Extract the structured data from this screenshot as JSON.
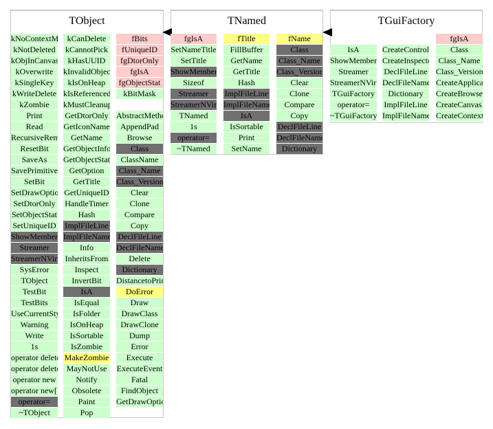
{
  "classes": [
    {
      "name": "TObject",
      "columns": [
        [
          {
            "t": "kNoContextMenu",
            "k": "green"
          },
          {
            "t": "kNotDeleted",
            "k": "green"
          },
          {
            "t": "kObjInCanvas",
            "k": "green"
          },
          {
            "t": "kOverwrite",
            "k": "green"
          },
          {
            "t": "kSingleKey",
            "k": "green"
          },
          {
            "t": "kWriteDelete",
            "k": "green"
          },
          {
            "t": "kZombie",
            "k": "green"
          },
          {
            "t": "Print",
            "k": "green"
          },
          {
            "t": "Read",
            "k": "green"
          },
          {
            "t": "RecursiveRemove",
            "k": "green"
          },
          {
            "t": "ResetBit",
            "k": "green"
          },
          {
            "t": "SaveAs",
            "k": "green"
          },
          {
            "t": "SavePrimitive",
            "k": "green"
          },
          {
            "t": "SetBit",
            "k": "green"
          },
          {
            "t": "SetDrawOption",
            "k": "green"
          },
          {
            "t": "SetDtorOnly",
            "k": "green"
          },
          {
            "t": "SetObjectStat",
            "k": "green"
          },
          {
            "t": "SetUniqueID",
            "k": "green"
          },
          {
            "t": "ShowMembers",
            "k": "gray"
          },
          {
            "t": "Streamer",
            "k": "gray"
          },
          {
            "t": "StreamerNVirtual",
            "k": "gray"
          },
          {
            "t": "SysError",
            "k": "green"
          },
          {
            "t": "TObject",
            "k": "green"
          },
          {
            "t": "TestBit",
            "k": "green"
          },
          {
            "t": "TestBits",
            "k": "green"
          },
          {
            "t": "UseCurrentStyle",
            "k": "green"
          },
          {
            "t": "Warning",
            "k": "green"
          },
          {
            "t": "Write",
            "k": "green"
          },
          {
            "t": "1s",
            "k": "green"
          },
          {
            "t": "operator delete",
            "k": "green"
          },
          {
            "t": "operator delete[]",
            "k": "green"
          },
          {
            "t": "operator new",
            "k": "green"
          },
          {
            "t": "operator new[]",
            "k": "green"
          },
          {
            "t": "operator=",
            "k": "gray"
          },
          {
            "t": "~TObject",
            "k": "green"
          }
        ],
        [
          {
            "t": "kCanDelete",
            "k": "green"
          },
          {
            "t": "kCannotPick",
            "k": "green"
          },
          {
            "t": "kHasUUID",
            "k": "green"
          },
          {
            "t": "kInvalidObject",
            "k": "green"
          },
          {
            "t": "kIsOnHeap",
            "k": "green"
          },
          {
            "t": "kIsReferenced",
            "k": "green"
          },
          {
            "t": "kMustCleanup",
            "k": "green"
          },
          {
            "t": "GetDtorOnly",
            "k": "green"
          },
          {
            "t": "GetIconName",
            "k": "green"
          },
          {
            "t": "GetName",
            "k": "green"
          },
          {
            "t": "GetObjectInfo",
            "k": "green"
          },
          {
            "t": "GetObjectStat",
            "k": "green"
          },
          {
            "t": "GetOption",
            "k": "green"
          },
          {
            "t": "GetTitle",
            "k": "green"
          },
          {
            "t": "GetUniqueID",
            "k": "green"
          },
          {
            "t": "HandleTimer",
            "k": "green"
          },
          {
            "t": "Hash",
            "k": "green"
          },
          {
            "t": "ImplFileLine",
            "k": "gray"
          },
          {
            "t": "ImplFileName",
            "k": "gray"
          },
          {
            "t": "Info",
            "k": "green"
          },
          {
            "t": "InheritsFrom",
            "k": "green"
          },
          {
            "t": "Inspect",
            "k": "green"
          },
          {
            "t": "InvertBit",
            "k": "green"
          },
          {
            "t": "IsA",
            "k": "gray"
          },
          {
            "t": "IsEqual",
            "k": "green"
          },
          {
            "t": "IsFolder",
            "k": "green"
          },
          {
            "t": "IsOnHeap",
            "k": "green"
          },
          {
            "t": "IsSortable",
            "k": "green"
          },
          {
            "t": "IsZombie",
            "k": "green"
          },
          {
            "t": "MakeZombie",
            "k": "yellow"
          },
          {
            "t": "MayNotUse",
            "k": "green"
          },
          {
            "t": "Notify",
            "k": "green"
          },
          {
            "t": "Obsolete",
            "k": "green"
          },
          {
            "t": "Paint",
            "k": "green"
          },
          {
            "t": "Pop",
            "k": "green"
          }
        ],
        [
          {
            "t": "fBits",
            "k": "pink"
          },
          {
            "t": "fUniqueID",
            "k": "pink"
          },
          {
            "t": "fgDtorOnly",
            "k": "pink"
          },
          {
            "t": "fgIsA",
            "k": "pink"
          },
          {
            "t": "fgObjectStat",
            "k": "pink"
          },
          {
            "t": "kBitMask",
            "k": "green"
          },
          {
            "t": "",
            "k": "blank"
          },
          {
            "t": "AbstractMethod",
            "k": "green"
          },
          {
            "t": "AppendPad",
            "k": "green"
          },
          {
            "t": "Browse",
            "k": "green"
          },
          {
            "t": "Class",
            "k": "gray"
          },
          {
            "t": "ClassName",
            "k": "green"
          },
          {
            "t": "Class_Name",
            "k": "gray"
          },
          {
            "t": "Class_Version",
            "k": "gray"
          },
          {
            "t": "Clear",
            "k": "green"
          },
          {
            "t": "Clone",
            "k": "green"
          },
          {
            "t": "Compare",
            "k": "green"
          },
          {
            "t": "Copy",
            "k": "green"
          },
          {
            "t": "DeclFileLine",
            "k": "gray"
          },
          {
            "t": "DeclFileName",
            "k": "gray"
          },
          {
            "t": "Delete",
            "k": "green"
          },
          {
            "t": "Dictionary",
            "k": "gray"
          },
          {
            "t": "DistancetoPrimitive",
            "k": "green"
          },
          {
            "t": "DoError",
            "k": "yellow"
          },
          {
            "t": "Draw",
            "k": "green"
          },
          {
            "t": "DrawClass",
            "k": "green"
          },
          {
            "t": "DrawClone",
            "k": "green"
          },
          {
            "t": "Dump",
            "k": "green"
          },
          {
            "t": "Error",
            "k": "green"
          },
          {
            "t": "Execute",
            "k": "green"
          },
          {
            "t": "ExecuteEvent",
            "k": "green"
          },
          {
            "t": "Fatal",
            "k": "green"
          },
          {
            "t": "FindObject",
            "k": "green"
          },
          {
            "t": "GetDrawOption",
            "k": "green"
          }
        ]
      ]
    },
    {
      "name": "TNamed",
      "columns": [
        [
          {
            "t": "fgIsA",
            "k": "pink"
          },
          {
            "t": "SetNameTitle",
            "k": "green"
          },
          {
            "t": "SetTitle",
            "k": "green"
          },
          {
            "t": "ShowMembers",
            "k": "gray"
          },
          {
            "t": "Sizeof",
            "k": "green"
          },
          {
            "t": "Streamer",
            "k": "gray"
          },
          {
            "t": "StreamerNVirtual",
            "k": "gray"
          },
          {
            "t": "TNamed",
            "k": "green"
          },
          {
            "t": "1s",
            "k": "green"
          },
          {
            "t": "operator=",
            "k": "gray"
          },
          {
            "t": "~TNamed",
            "k": "green"
          }
        ],
        [
          {
            "t": "fTitle",
            "k": "yellow"
          },
          {
            "t": "FillBuffer",
            "k": "green"
          },
          {
            "t": "GetName",
            "k": "green"
          },
          {
            "t": "GetTitle",
            "k": "green"
          },
          {
            "t": "Hash",
            "k": "green"
          },
          {
            "t": "ImplFileLine",
            "k": "gray"
          },
          {
            "t": "ImplFileName",
            "k": "gray"
          },
          {
            "t": "IsA",
            "k": "gray"
          },
          {
            "t": "IsSortable",
            "k": "green"
          },
          {
            "t": "Print",
            "k": "green"
          },
          {
            "t": "SetName",
            "k": "green"
          }
        ],
        [
          {
            "t": "fName",
            "k": "yellow"
          },
          {
            "t": "Class",
            "k": "gray"
          },
          {
            "t": "Class_Name",
            "k": "gray"
          },
          {
            "t": "Class_Version",
            "k": "gray"
          },
          {
            "t": "Clear",
            "k": "green"
          },
          {
            "t": "Clone",
            "k": "green"
          },
          {
            "t": "Compare",
            "k": "green"
          },
          {
            "t": "Copy",
            "k": "green"
          },
          {
            "t": "DeclFileLine",
            "k": "gray"
          },
          {
            "t": "DeclFileName",
            "k": "gray"
          },
          {
            "t": "Dictionary",
            "k": "gray"
          }
        ]
      ]
    },
    {
      "name": "TGuiFactory",
      "columns": [
        [
          {
            "t": "",
            "k": "blank"
          },
          {
            "t": "IsA",
            "k": "green"
          },
          {
            "t": "ShowMembers",
            "k": "green"
          },
          {
            "t": "Streamer",
            "k": "green"
          },
          {
            "t": "StreamerNVirtual",
            "k": "green"
          },
          {
            "t": "TGuiFactory",
            "k": "green"
          },
          {
            "t": "operator=",
            "k": "green"
          },
          {
            "t": "~TGuiFactory",
            "k": "green"
          }
        ],
        [
          {
            "t": "",
            "k": "blank"
          },
          {
            "t": "CreateControlBarImp",
            "k": "green"
          },
          {
            "t": "CreateInspectorImp",
            "k": "green"
          },
          {
            "t": "DeclFileLine",
            "k": "green"
          },
          {
            "t": "DeclFileName",
            "k": "green"
          },
          {
            "t": "Dictionary",
            "k": "green"
          },
          {
            "t": "ImplFileLine",
            "k": "green"
          },
          {
            "t": "ImplFileName",
            "k": "green"
          }
        ],
        [
          {
            "t": "fgIsA",
            "k": "pink"
          },
          {
            "t": "Class",
            "k": "green"
          },
          {
            "t": "Class_Name",
            "k": "green"
          },
          {
            "t": "Class_Version",
            "k": "green"
          },
          {
            "t": "CreateApplicationImp",
            "k": "green"
          },
          {
            "t": "CreateBrowserImp",
            "k": "green"
          },
          {
            "t": "CreateCanvasImp",
            "k": "green"
          },
          {
            "t": "CreateContextMenuImp",
            "k": "green"
          }
        ]
      ]
    }
  ]
}
